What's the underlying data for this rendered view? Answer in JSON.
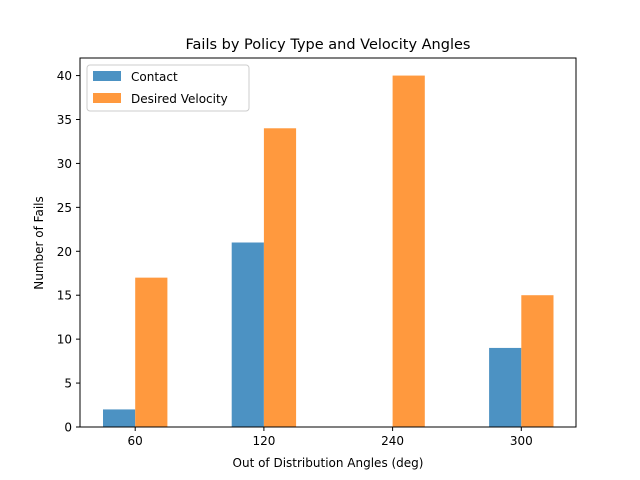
{
  "chart_data": {
    "type": "bar",
    "title": "Fails by Policy Type and Velocity Angles",
    "xlabel": "Out of Distribution Angles (deg)",
    "ylabel": "Number of Fails",
    "categories": [
      "60",
      "120",
      "240",
      "300"
    ],
    "ylim": [
      0,
      42
    ],
    "yticks": [
      0,
      5,
      10,
      15,
      20,
      25,
      30,
      35,
      40
    ],
    "grid": false,
    "legend_position": "top-left",
    "series": [
      {
        "name": "Contact",
        "values": [
          2,
          21,
          0,
          9
        ],
        "color": "#4c92c3"
      },
      {
        "name": "Desired Velocity",
        "values": [
          17,
          34,
          40,
          15
        ],
        "color": "#ff993e"
      }
    ]
  }
}
